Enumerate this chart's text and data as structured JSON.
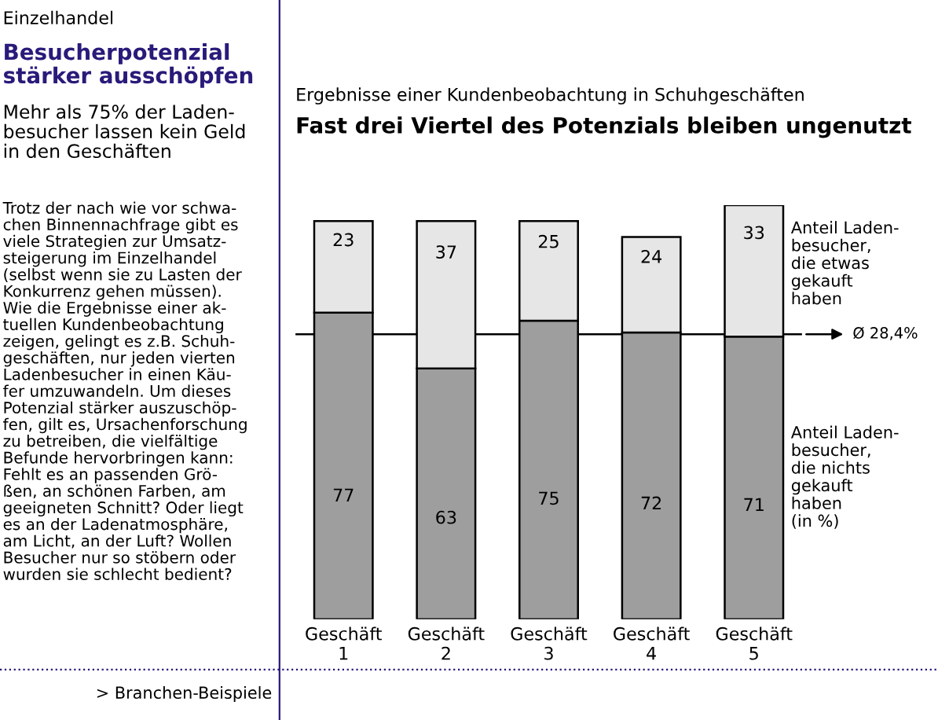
{
  "chart_data": {
    "type": "bar",
    "stacked": true,
    "title": "Fast drei Viertel des Potenzials bleiben ungenutzt",
    "subtitle": "Ergebnisse einer Kundenbeobachtung in Schuhgeschäften",
    "categories": [
      "Geschäft\n1",
      "Geschäft\n2",
      "Geschäft\n3",
      "Geschäft\n4",
      "Geschäft\n5"
    ],
    "series": [
      {
        "name": "Anteil Laden-\nbesucher,\ndie nichts\ngekauft\nhaben\n(in %)",
        "color": "#9e9e9e",
        "values": [
          77,
          63,
          75,
          72,
          71
        ]
      },
      {
        "name": "Anteil Laden-\nbesucher,\ndie etwas\ngekauft\nhaben",
        "color": "#e6e6e6",
        "values": [
          23,
          37,
          25,
          24,
          33
        ]
      }
    ],
    "data_labels": true,
    "ref_lines": [
      {
        "axis": "y",
        "value": 71.6,
        "label": "Ø 28,4%",
        "color": "#000000"
      }
    ],
    "tick_labels": "x",
    "legend": false,
    "annotations": [
      "Einzelhandel",
      "Besucherpotenzial\nstärker ausschöpfen",
      "Mehr als 75% der Laden-\nbesucher lassen kein Geld\nin den Geschäften",
      "Trotz der nach wie vor schwa-\nchen Binnennachfrage gibt es\nviele Strategien zur Umsatz-\nsteigerung im Einzelhandel\n(selbst wenn sie zu Lasten der\nKonkurrenz gehen müssen).\nWie die Ergebnisse einer ak-\ntuellen Kundenbeobachtung\nzeigen, gelingt es z.B. Schuh-\ngeschäften, nur jeden vierten\nLadenbesucher in einen Käu-\nfer umzuwandeln. Um dieses\nPotenzial stärker auszuschöp-\nfen, gilt es, Ursachenforschung\nzu betreiben, die vielfältige\nBefunde hervorbringen kann:\nFehlt es an passenden Grö-\nßen, an schönen Farben, am\ngeeigneten Schnitt? Oder liegt\nes an der Ladenatmosphäre,\nam Licht, an der Luft? Wollen\nBesucher nur so stöbern oder\nwurden sie schlecht bedient?",
      "> Branchen-Beispiele"
    ]
  }
}
